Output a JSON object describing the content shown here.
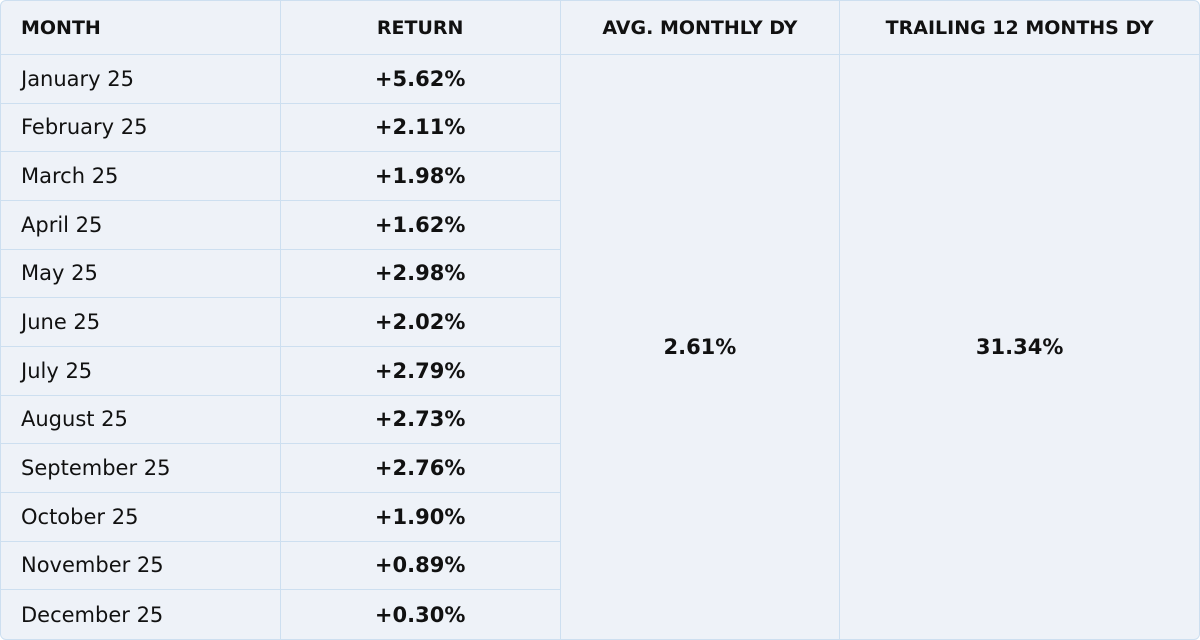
{
  "table": {
    "headers": [
      "MONTH",
      "RETURN",
      "AVG. MONTHLY DY",
      "TRAILING 12 MONTHS DY"
    ],
    "rows": [
      [
        "January 25",
        "+5.62%"
      ],
      [
        "February 25",
        "+2.11%"
      ],
      [
        "March 25",
        "+1.98%"
      ],
      [
        "April 25",
        "+1.62%"
      ],
      [
        "May 25",
        "+2.98%"
      ],
      [
        "June 25",
        "+2.02%"
      ],
      [
        "July 25",
        "+2.79%"
      ],
      [
        "August 25",
        "+2.73%"
      ],
      [
        "September 25",
        "+2.76%"
      ],
      [
        "October 25",
        "+1.90%"
      ],
      [
        "November 25",
        "+0.89%"
      ],
      [
        "December 25",
        "+0.30%"
      ]
    ],
    "avg_monthly_dy": "2.61%",
    "trailing_12_months_dy": "31.34%"
  }
}
